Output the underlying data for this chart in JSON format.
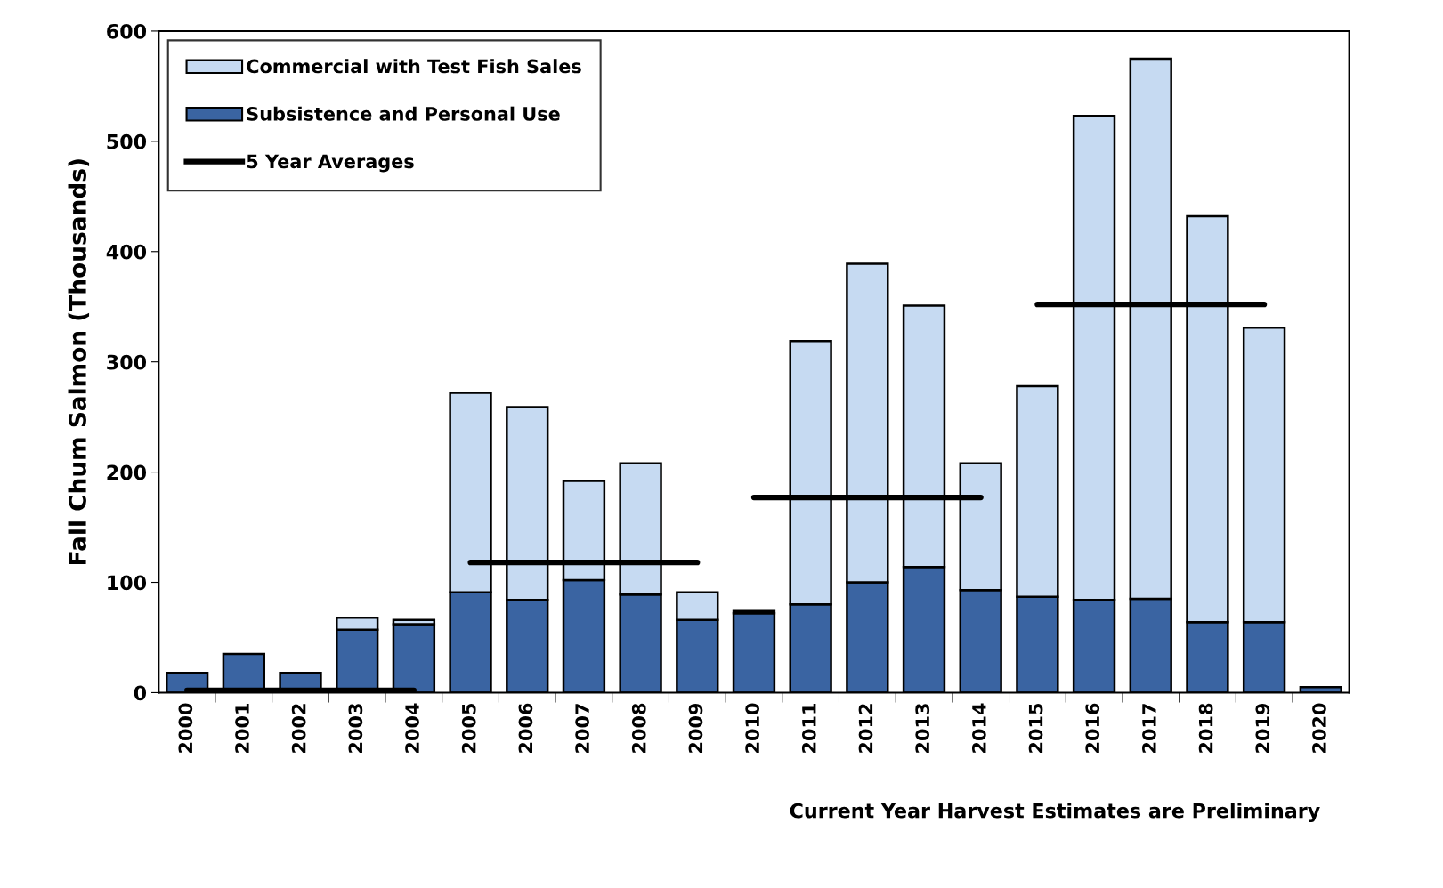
{
  "chart_data": {
    "type": "bar",
    "stacked": true,
    "ylabel": "Fall Chum Salmon (Thousands)",
    "categories": [
      "2000",
      "2001",
      "2002",
      "2003",
      "2004",
      "2005",
      "2006",
      "2007",
      "2008",
      "2009",
      "2010",
      "2011",
      "2012",
      "2013",
      "2014",
      "2015",
      "2016",
      "2017",
      "2018",
      "2019",
      "2020"
    ],
    "series": [
      {
        "name": "Subsistence and Personal Use",
        "color": "#3a64a2",
        "values": [
          18,
          35,
          18,
          57,
          62,
          91,
          84,
          102,
          89,
          66,
          72,
          80,
          100,
          114,
          93,
          87,
          84,
          85,
          64,
          64,
          5
        ]
      },
      {
        "name": "Commercial with Test Fish Sales",
        "color": "#c6daf2",
        "values": [
          null,
          null,
          null,
          11,
          4,
          181,
          175,
          90,
          119,
          25,
          2,
          239,
          289,
          237,
          115,
          191,
          439,
          490,
          368,
          267,
          null
        ]
      },
      {
        "name": "5 Year Averages",
        "type": "line",
        "color": "#000000",
        "values": [
          2,
          2,
          2,
          2,
          2,
          118,
          118,
          118,
          118,
          118,
          177,
          177,
          177,
          177,
          177,
          352,
          352,
          352,
          352,
          352,
          null
        ]
      }
    ],
    "ylim": [
      0,
      600
    ],
    "yticks": [
      0,
      100,
      200,
      300,
      400,
      500,
      600
    ],
    "grid": false,
    "legend": "top left",
    "annotations": [
      "Current Year Harvest Estimates are Preliminary"
    ]
  }
}
